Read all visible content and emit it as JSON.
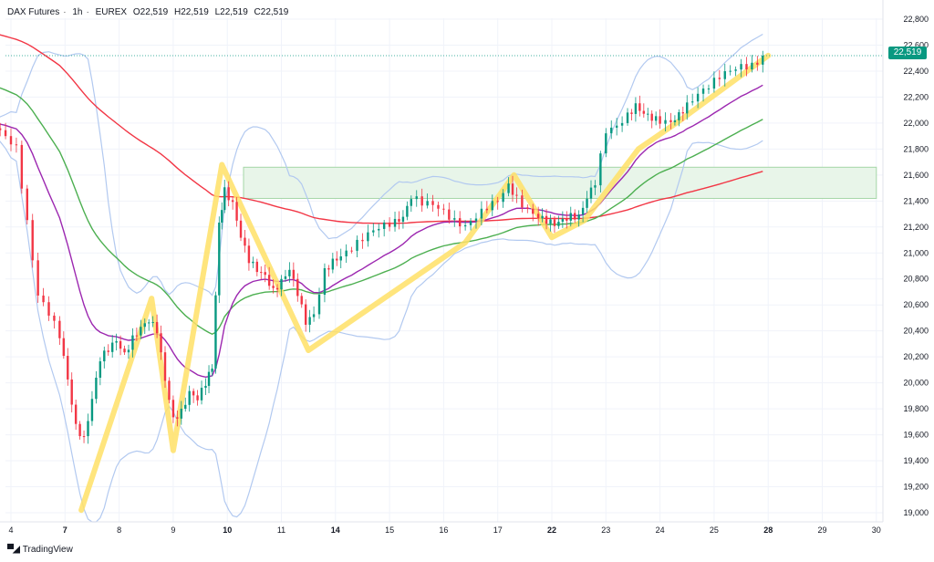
{
  "header": {
    "symbol": "DAX Futures",
    "interval": "1h",
    "exchange": "EUREX",
    "open": "O22,519",
    "high": "H22,519",
    "low": "L22,519",
    "close": "C22,519"
  },
  "price_tag": "22,519",
  "brand": {
    "text": "TradingView",
    "logo_icon": "tradingview-logo-icon"
  },
  "colors": {
    "up": "#089981",
    "down": "#f23645",
    "candle": "#2a2e39",
    "bollinger": "#b2c9f0",
    "ma_fast": "#9c27b0",
    "ma_mid": "#4caf50",
    "ma_slow": "#f23645",
    "zigzag": "#ffe066",
    "zone_fill": "#e8f5e9",
    "zone_border": "#a5d6a7",
    "last_price_line": "#089981"
  },
  "chart_data": {
    "type": "candlestick",
    "title": "",
    "ylim": [
      19000,
      22900
    ],
    "y_ticks": [
      {
        "value": 19000,
        "label": "19,000"
      },
      {
        "value": 19200,
        "label": "19,200"
      },
      {
        "value": 19400,
        "label": "19,400"
      },
      {
        "value": 19600,
        "label": "19,600"
      },
      {
        "value": 19800,
        "label": "19,800"
      },
      {
        "value": 20000,
        "label": "20,000"
      },
      {
        "value": 20200,
        "label": "20,200"
      },
      {
        "value": 20400,
        "label": "20,400"
      },
      {
        "value": 20600,
        "label": "20,600"
      },
      {
        "value": 20800,
        "label": "20,800"
      },
      {
        "value": 21000,
        "label": "21,000"
      },
      {
        "value": 21200,
        "label": "21,200"
      },
      {
        "value": 21400,
        "label": "21,400"
      },
      {
        "value": 21600,
        "label": "21,600"
      },
      {
        "value": 21800,
        "label": "21,800"
      },
      {
        "value": 22000,
        "label": "22,000"
      },
      {
        "value": 22200,
        "label": "22,200"
      },
      {
        "value": 22400,
        "label": "22,400"
      },
      {
        "value": 22600,
        "label": "22,600"
      },
      {
        "value": 22800,
        "label": "22,800"
      }
    ],
    "x_ticks": [
      {
        "t": 0,
        "label": "4",
        "bold": false
      },
      {
        "t": 1,
        "label": "7",
        "bold": true
      },
      {
        "t": 2,
        "label": "8",
        "bold": false
      },
      {
        "t": 3,
        "label": "9",
        "bold": false
      },
      {
        "t": 4,
        "label": "10",
        "bold": true
      },
      {
        "t": 5,
        "label": "11",
        "bold": false
      },
      {
        "t": 6,
        "label": "14",
        "bold": true
      },
      {
        "t": 7,
        "label": "15",
        "bold": false
      },
      {
        "t": 8,
        "label": "16",
        "bold": false
      },
      {
        "t": 9,
        "label": "17",
        "bold": false
      },
      {
        "t": 10,
        "label": "22",
        "bold": true
      },
      {
        "t": 11,
        "label": "23",
        "bold": false
      },
      {
        "t": 12,
        "label": "24",
        "bold": false
      },
      {
        "t": 13,
        "label": "25",
        "bold": false
      },
      {
        "t": 14,
        "label": "28",
        "bold": true
      },
      {
        "t": 15,
        "label": "29",
        "bold": false
      },
      {
        "t": 16,
        "label": "30",
        "bold": false
      }
    ],
    "x_range": [
      -0.3,
      16.3
    ],
    "last_price": 22519,
    "zone": {
      "t_start": 4.3,
      "t_end": 16,
      "low": 21420,
      "high": 21660
    },
    "zigzag": [
      [
        1.3,
        19020
      ],
      [
        2.6,
        20650
      ],
      [
        3.0,
        19480
      ],
      [
        3.9,
        21680
      ],
      [
        5.5,
        20250
      ],
      [
        8.4,
        21080
      ],
      [
        9.3,
        21600
      ],
      [
        10.0,
        21120
      ],
      [
        10.6,
        21250
      ],
      [
        11.6,
        21800
      ],
      [
        12.3,
        22000
      ],
      [
        14.0,
        22520
      ]
    ],
    "candles_raw": [
      [
        -0.3,
        21960
      ],
      [
        -0.1,
        21870
      ],
      [
        0.1,
        21800
      ],
      [
        0.3,
        21250
      ],
      [
        0.5,
        20700
      ],
      [
        0.7,
        20550
      ],
      [
        0.9,
        20350
      ],
      [
        1.05,
        20000
      ],
      [
        1.2,
        19650
      ],
      [
        1.35,
        19580
      ],
      [
        1.5,
        19900
      ],
      [
        1.65,
        20200
      ],
      [
        1.8,
        20250
      ],
      [
        1.95,
        20300
      ],
      [
        2.1,
        20200
      ],
      [
        2.25,
        20350
      ],
      [
        2.4,
        20450
      ],
      [
        2.55,
        20500
      ],
      [
        2.7,
        20400
      ],
      [
        2.85,
        20000
      ],
      [
        3.0,
        19700
      ],
      [
        3.15,
        19780
      ],
      [
        3.3,
        19950
      ],
      [
        3.45,
        19900
      ],
      [
        3.6,
        20000
      ],
      [
        3.72,
        20100
      ],
      [
        3.85,
        21200
      ],
      [
        3.95,
        21480
      ],
      [
        4.1,
        21400
      ],
      [
        4.25,
        21150
      ],
      [
        4.4,
        20950
      ],
      [
        4.55,
        20850
      ],
      [
        4.7,
        20800
      ],
      [
        4.85,
        20700
      ],
      [
        5.0,
        20800
      ],
      [
        5.15,
        20900
      ],
      [
        5.3,
        20700
      ],
      [
        5.45,
        20450
      ],
      [
        5.6,
        20500
      ],
      [
        5.8,
        20850
      ],
      [
        5.95,
        20950
      ],
      [
        6.1,
        21000
      ],
      [
        6.3,
        21050
      ],
      [
        6.5,
        21100
      ],
      [
        6.7,
        21150
      ],
      [
        6.9,
        21200
      ],
      [
        7.1,
        21250
      ],
      [
        7.25,
        21300
      ],
      [
        7.4,
        21450
      ],
      [
        7.6,
        21380
      ],
      [
        7.8,
        21350
      ],
      [
        8.0,
        21300
      ],
      [
        8.2,
        21250
      ],
      [
        8.4,
        21230
      ],
      [
        8.6,
        21300
      ],
      [
        8.8,
        21350
      ],
      [
        9.0,
        21380
      ],
      [
        9.2,
        21500
      ],
      [
        9.35,
        21420
      ],
      [
        9.55,
        21350
      ],
      [
        9.75,
        21300
      ],
      [
        9.9,
        21250
      ],
      [
        10.05,
        21200
      ],
      [
        10.2,
        21230
      ],
      [
        10.35,
        21280
      ],
      [
        10.5,
        21300
      ],
      [
        10.65,
        21450
      ],
      [
        10.8,
        21550
      ],
      [
        11.0,
        21920
      ],
      [
        11.2,
        21950
      ],
      [
        11.4,
        22050
      ],
      [
        11.55,
        22150
      ],
      [
        11.7,
        22100
      ],
      [
        11.85,
        22050
      ],
      [
        12.0,
        22000
      ],
      [
        12.2,
        21980
      ],
      [
        12.35,
        22050
      ],
      [
        12.5,
        22150
      ],
      [
        12.7,
        22250
      ],
      [
        12.9,
        22300
      ],
      [
        13.1,
        22350
      ],
      [
        13.3,
        22380
      ],
      [
        13.5,
        22420
      ],
      [
        13.7,
        22450
      ],
      [
        13.9,
        22519
      ]
    ]
  }
}
